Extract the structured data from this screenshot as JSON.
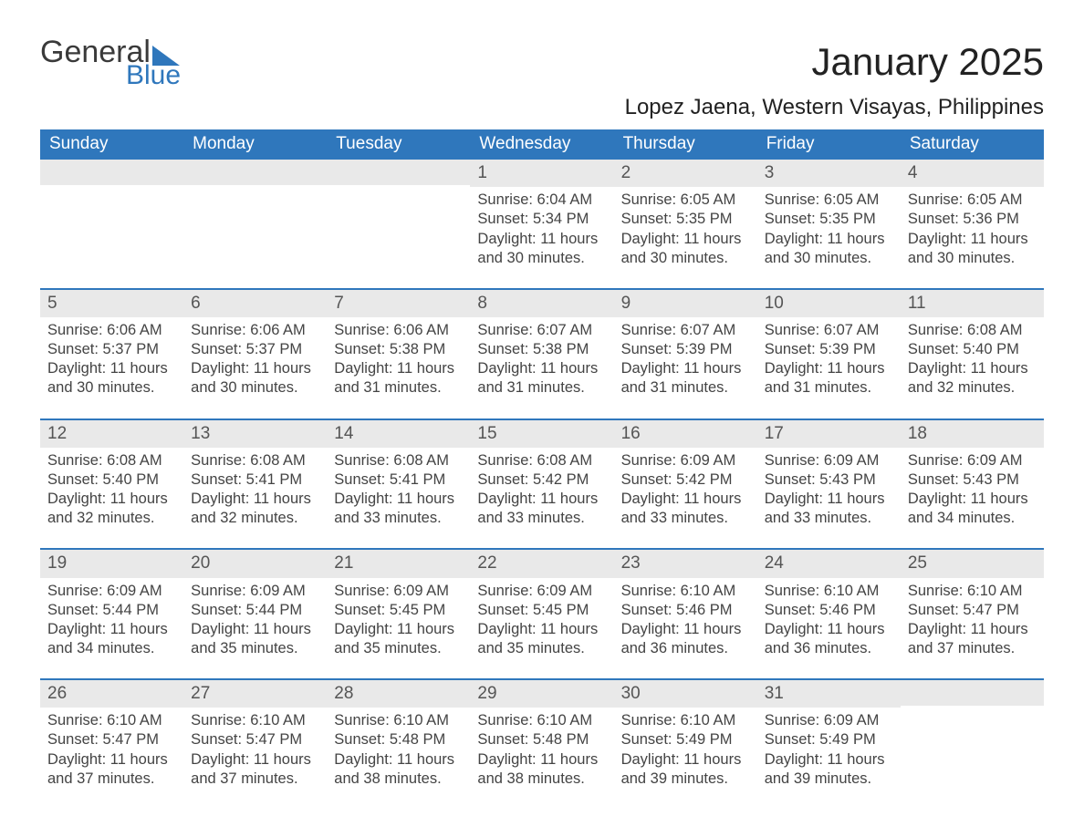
{
  "logo": {
    "word1": "General",
    "word2": "Blue"
  },
  "title": "January 2025",
  "location": "Lopez Jaena, Western Visayas, Philippines",
  "colors": {
    "accent": "#2f77bc",
    "header_bg": "#2f77bc",
    "header_text": "#ffffff",
    "daynum_bg": "#e9e9e9",
    "text": "#444444",
    "background": "#ffffff"
  },
  "days_of_week": [
    "Sunday",
    "Monday",
    "Tuesday",
    "Wednesday",
    "Thursday",
    "Friday",
    "Saturday"
  ],
  "layout": {
    "columns": 7,
    "rows": 5,
    "font_body_pt": 12,
    "font_title_pt": 32,
    "font_location_pt": 18,
    "font_dow_pt": 14
  },
  "weeks": [
    [
      {
        "n": "",
        "sunrise": "",
        "sunset": "",
        "daylight": ""
      },
      {
        "n": "",
        "sunrise": "",
        "sunset": "",
        "daylight": ""
      },
      {
        "n": "",
        "sunrise": "",
        "sunset": "",
        "daylight": ""
      },
      {
        "n": "1",
        "sunrise": "Sunrise: 6:04 AM",
        "sunset": "Sunset: 5:34 PM",
        "daylight": "Daylight: 11 hours and 30 minutes."
      },
      {
        "n": "2",
        "sunrise": "Sunrise: 6:05 AM",
        "sunset": "Sunset: 5:35 PM",
        "daylight": "Daylight: 11 hours and 30 minutes."
      },
      {
        "n": "3",
        "sunrise": "Sunrise: 6:05 AM",
        "sunset": "Sunset: 5:35 PM",
        "daylight": "Daylight: 11 hours and 30 minutes."
      },
      {
        "n": "4",
        "sunrise": "Sunrise: 6:05 AM",
        "sunset": "Sunset: 5:36 PM",
        "daylight": "Daylight: 11 hours and 30 minutes."
      }
    ],
    [
      {
        "n": "5",
        "sunrise": "Sunrise: 6:06 AM",
        "sunset": "Sunset: 5:37 PM",
        "daylight": "Daylight: 11 hours and 30 minutes."
      },
      {
        "n": "6",
        "sunrise": "Sunrise: 6:06 AM",
        "sunset": "Sunset: 5:37 PM",
        "daylight": "Daylight: 11 hours and 30 minutes."
      },
      {
        "n": "7",
        "sunrise": "Sunrise: 6:06 AM",
        "sunset": "Sunset: 5:38 PM",
        "daylight": "Daylight: 11 hours and 31 minutes."
      },
      {
        "n": "8",
        "sunrise": "Sunrise: 6:07 AM",
        "sunset": "Sunset: 5:38 PM",
        "daylight": "Daylight: 11 hours and 31 minutes."
      },
      {
        "n": "9",
        "sunrise": "Sunrise: 6:07 AM",
        "sunset": "Sunset: 5:39 PM",
        "daylight": "Daylight: 11 hours and 31 minutes."
      },
      {
        "n": "10",
        "sunrise": "Sunrise: 6:07 AM",
        "sunset": "Sunset: 5:39 PM",
        "daylight": "Daylight: 11 hours and 31 minutes."
      },
      {
        "n": "11",
        "sunrise": "Sunrise: 6:08 AM",
        "sunset": "Sunset: 5:40 PM",
        "daylight": "Daylight: 11 hours and 32 minutes."
      }
    ],
    [
      {
        "n": "12",
        "sunrise": "Sunrise: 6:08 AM",
        "sunset": "Sunset: 5:40 PM",
        "daylight": "Daylight: 11 hours and 32 minutes."
      },
      {
        "n": "13",
        "sunrise": "Sunrise: 6:08 AM",
        "sunset": "Sunset: 5:41 PM",
        "daylight": "Daylight: 11 hours and 32 minutes."
      },
      {
        "n": "14",
        "sunrise": "Sunrise: 6:08 AM",
        "sunset": "Sunset: 5:41 PM",
        "daylight": "Daylight: 11 hours and 33 minutes."
      },
      {
        "n": "15",
        "sunrise": "Sunrise: 6:08 AM",
        "sunset": "Sunset: 5:42 PM",
        "daylight": "Daylight: 11 hours and 33 minutes."
      },
      {
        "n": "16",
        "sunrise": "Sunrise: 6:09 AM",
        "sunset": "Sunset: 5:42 PM",
        "daylight": "Daylight: 11 hours and 33 minutes."
      },
      {
        "n": "17",
        "sunrise": "Sunrise: 6:09 AM",
        "sunset": "Sunset: 5:43 PM",
        "daylight": "Daylight: 11 hours and 33 minutes."
      },
      {
        "n": "18",
        "sunrise": "Sunrise: 6:09 AM",
        "sunset": "Sunset: 5:43 PM",
        "daylight": "Daylight: 11 hours and 34 minutes."
      }
    ],
    [
      {
        "n": "19",
        "sunrise": "Sunrise: 6:09 AM",
        "sunset": "Sunset: 5:44 PM",
        "daylight": "Daylight: 11 hours and 34 minutes."
      },
      {
        "n": "20",
        "sunrise": "Sunrise: 6:09 AM",
        "sunset": "Sunset: 5:44 PM",
        "daylight": "Daylight: 11 hours and 35 minutes."
      },
      {
        "n": "21",
        "sunrise": "Sunrise: 6:09 AM",
        "sunset": "Sunset: 5:45 PM",
        "daylight": "Daylight: 11 hours and 35 minutes."
      },
      {
        "n": "22",
        "sunrise": "Sunrise: 6:09 AM",
        "sunset": "Sunset: 5:45 PM",
        "daylight": "Daylight: 11 hours and 35 minutes."
      },
      {
        "n": "23",
        "sunrise": "Sunrise: 6:10 AM",
        "sunset": "Sunset: 5:46 PM",
        "daylight": "Daylight: 11 hours and 36 minutes."
      },
      {
        "n": "24",
        "sunrise": "Sunrise: 6:10 AM",
        "sunset": "Sunset: 5:46 PM",
        "daylight": "Daylight: 11 hours and 36 minutes."
      },
      {
        "n": "25",
        "sunrise": "Sunrise: 6:10 AM",
        "sunset": "Sunset: 5:47 PM",
        "daylight": "Daylight: 11 hours and 37 minutes."
      }
    ],
    [
      {
        "n": "26",
        "sunrise": "Sunrise: 6:10 AM",
        "sunset": "Sunset: 5:47 PM",
        "daylight": "Daylight: 11 hours and 37 minutes."
      },
      {
        "n": "27",
        "sunrise": "Sunrise: 6:10 AM",
        "sunset": "Sunset: 5:47 PM",
        "daylight": "Daylight: 11 hours and 37 minutes."
      },
      {
        "n": "28",
        "sunrise": "Sunrise: 6:10 AM",
        "sunset": "Sunset: 5:48 PM",
        "daylight": "Daylight: 11 hours and 38 minutes."
      },
      {
        "n": "29",
        "sunrise": "Sunrise: 6:10 AM",
        "sunset": "Sunset: 5:48 PM",
        "daylight": "Daylight: 11 hours and 38 minutes."
      },
      {
        "n": "30",
        "sunrise": "Sunrise: 6:10 AM",
        "sunset": "Sunset: 5:49 PM",
        "daylight": "Daylight: 11 hours and 39 minutes."
      },
      {
        "n": "31",
        "sunrise": "Sunrise: 6:09 AM",
        "sunset": "Sunset: 5:49 PM",
        "daylight": "Daylight: 11 hours and 39 minutes."
      },
      {
        "n": "",
        "sunrise": "",
        "sunset": "",
        "daylight": ""
      }
    ]
  ]
}
